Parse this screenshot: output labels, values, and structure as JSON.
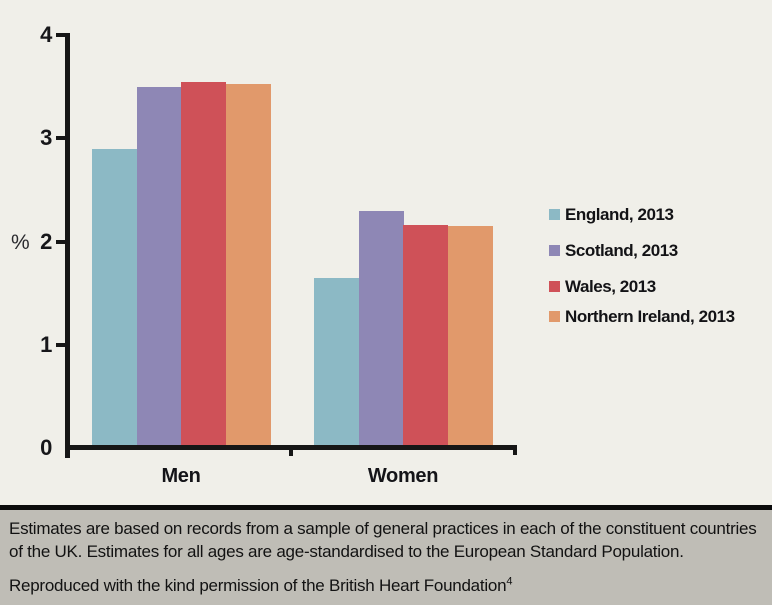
{
  "figure": {
    "type": "scanned-report-figure",
    "background_color": "#f0efe9",
    "axis_color": "#161616"
  },
  "chart_data": {
    "type": "bar",
    "title": "",
    "xlabel": "",
    "ylabel": "%",
    "categories": [
      "Men",
      "Women"
    ],
    "series": [
      {
        "name": "England, 2013",
        "color": "#8cb9c5",
        "values": [
          2.9,
          1.65
        ]
      },
      {
        "name": "Scotland, 2013",
        "color": "#8e87b5",
        "values": [
          3.5,
          2.3
        ]
      },
      {
        "name": "Wales, 2013",
        "color": "#cf5158",
        "values": [
          3.55,
          2.16
        ]
      },
      {
        "name": "Northern Ireland, 2013",
        "color": "#e1996b",
        "values": [
          3.53,
          2.15
        ]
      }
    ],
    "ylim": [
      0,
      4
    ],
    "yticks": [
      0,
      1,
      2,
      3,
      4
    ],
    "grid": false,
    "legend_position": "right"
  },
  "footer": {
    "background_color": "#bfbdb6",
    "divider_color": "#0c0c0c",
    "note_line1": "Estimates are based on records from a sample of general practices in each of the constituent countries",
    "note_line2": "of the UK. Estimates for all ages are age-standardised to the European Standard Population.",
    "credit": "Reproduced with the kind permission of the British Heart Foundation",
    "credit_superscript": "4"
  }
}
